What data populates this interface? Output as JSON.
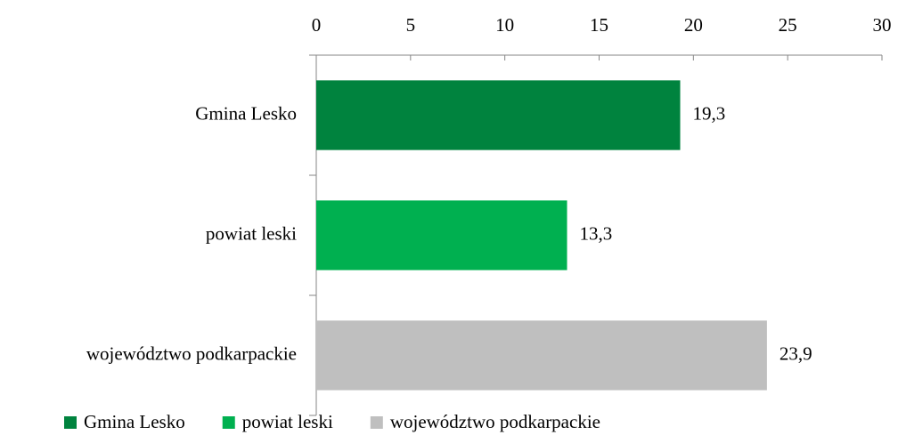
{
  "chart_data": {
    "type": "bar",
    "orientation": "horizontal",
    "categories": [
      "Gmina Lesko",
      "powiat leski",
      "województwo podkarpackie"
    ],
    "values": [
      19.3,
      13.3,
      23.9
    ],
    "value_labels": [
      "19,3",
      "13,3",
      "23,9"
    ],
    "colors": [
      "#00833e",
      "#00b050",
      "#bfbfbf"
    ],
    "xlim": [
      0,
      30
    ],
    "xticks": [
      0,
      5,
      10,
      15,
      20,
      25,
      30
    ],
    "legend": "bottom"
  }
}
